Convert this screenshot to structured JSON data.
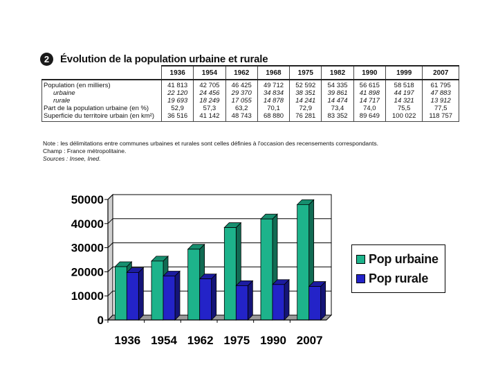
{
  "table": {
    "badge": "2",
    "title": "Évolution de la population urbaine et rurale",
    "years": [
      "1936",
      "1954",
      "1962",
      "1968",
      "1975",
      "1982",
      "1990",
      "1999",
      "2007"
    ],
    "row_labels": {
      "population": "Population (en milliers)",
      "urbaine": "urbaine",
      "rurale": "rurale",
      "part": "Part de la population urbaine (en %)",
      "superficie": "Superficie du territoire urbain (en km²)"
    },
    "population": [
      "41 813",
      "42 705",
      "46 425",
      "49 712",
      "52 592",
      "54 335",
      "56 615",
      "58 518",
      "61 795"
    ],
    "urbaine": [
      "22 120",
      "24 456",
      "29 370",
      "34 834",
      "38 351",
      "39 861",
      "41 898",
      "44 197",
      "47 883"
    ],
    "rurale": [
      "19 693",
      "18 249",
      "17 055",
      "14 878",
      "14 241",
      "14 474",
      "14 717",
      "14 321",
      "13 912"
    ],
    "part": [
      "52,9",
      "57,3",
      "63,2",
      "70,1",
      "72,9",
      "73,4",
      "74,0",
      "75,5",
      "77,5"
    ],
    "superficie": [
      "36 516",
      "41 142",
      "48 743",
      "68 880",
      "76 281",
      "83 352",
      "89 649",
      "100 022",
      "118 757"
    ],
    "note": "Note : les délimitations entre communes urbaines et rurales sont celles définies à l'occasion des recensements correspondants.",
    "champ": "Champ : France métropolitaine.",
    "sources": "Sources : Insee, Ined."
  },
  "chart_data": {
    "type": "bar",
    "categories": [
      "1936",
      "1954",
      "1962",
      "1975",
      "1990",
      "2007"
    ],
    "series": [
      {
        "name": "Pop urbaine",
        "values": [
          22120,
          24456,
          29370,
          38351,
          41898,
          47883
        ],
        "color": "#1db38b"
      },
      {
        "name": "Pop rurale",
        "values": [
          19693,
          18249,
          17055,
          14241,
          14717,
          13912
        ],
        "color": "#2323c8"
      }
    ],
    "ylim": [
      0,
      50000
    ],
    "yticks": [
      "0",
      "10000",
      "20000",
      "30000",
      "40000",
      "50000"
    ],
    "grid": true,
    "legend_position": "right",
    "three_d": true
  }
}
